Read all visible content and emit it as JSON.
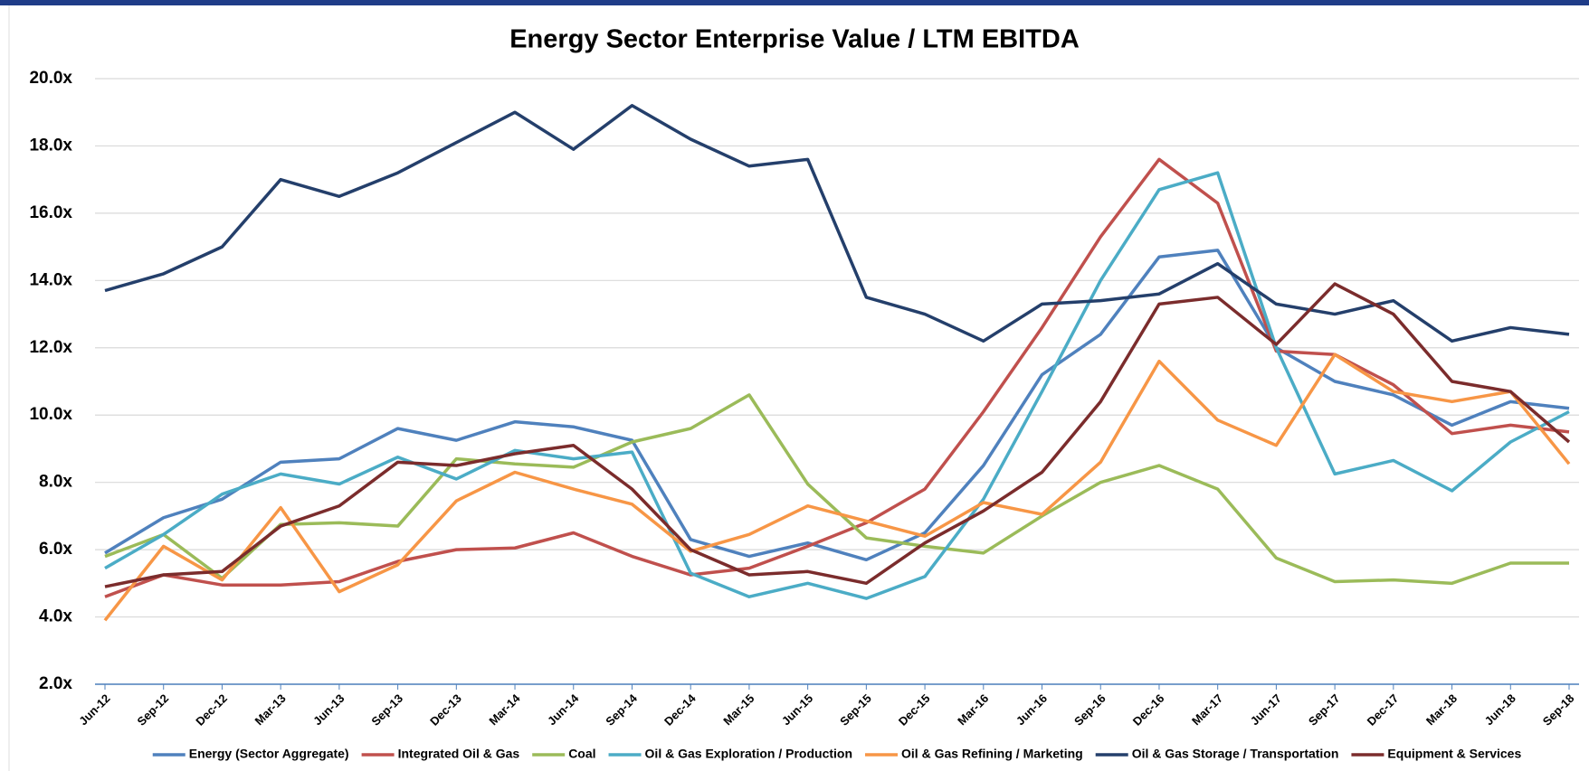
{
  "chart_data": {
    "type": "line",
    "title": "Energy Sector Enterprise Value  / LTM EBITDA",
    "categories": [
      "Jun-12",
      "Sep-12",
      "Dec-12",
      "Mar-13",
      "Jun-13",
      "Sep-13",
      "Dec-13",
      "Mar-14",
      "Jun-14",
      "Sep-14",
      "Dec-14",
      "Mar-15",
      "Jun-15",
      "Sep-15",
      "Dec-15",
      "Mar-16",
      "Jun-16",
      "Sep-16",
      "Dec-16",
      "Mar-17",
      "Jun-17",
      "Sep-17",
      "Dec-17",
      "Mar-18",
      "Jun-18",
      "Sep-18"
    ],
    "ylim": [
      2,
      20
    ],
    "yticks": [
      {
        "value": 2,
        "label": "2.0x"
      },
      {
        "value": 4,
        "label": "4.0x"
      },
      {
        "value": 6,
        "label": "6.0x"
      },
      {
        "value": 8,
        "label": "8.0x"
      },
      {
        "value": 10,
        "label": "10.0x"
      },
      {
        "value": 12,
        "label": "12.0x"
      },
      {
        "value": 14,
        "label": "14.0x"
      },
      {
        "value": 16,
        "label": "16.0x"
      },
      {
        "value": 18,
        "label": "18.0x"
      },
      {
        "value": 20,
        "label": "20.0x"
      }
    ],
    "grid": true,
    "legend": "bottom",
    "series": [
      {
        "name": "Energy (Sector Aggregate)",
        "color": "#4f81bd",
        "values": [
          5.9,
          6.95,
          7.5,
          8.6,
          8.7,
          9.6,
          9.25,
          9.8,
          9.65,
          9.25,
          6.3,
          5.8,
          6.2,
          5.7,
          6.5,
          8.5,
          11.2,
          12.4,
          14.7,
          14.9,
          12.0,
          11.0,
          10.6,
          9.7,
          10.4,
          10.2
        ]
      },
      {
        "name": "Integrated Oil & Gas",
        "color": "#c0504d",
        "values": [
          4.6,
          5.25,
          4.95,
          4.95,
          5.05,
          5.65,
          6.0,
          6.05,
          6.5,
          5.8,
          5.25,
          5.45,
          6.1,
          6.8,
          7.8,
          10.1,
          12.6,
          15.3,
          17.6,
          16.3,
          11.9,
          11.8,
          10.9,
          9.45,
          9.7,
          9.5
        ]
      },
      {
        "name": "Coal",
        "color": "#9bbb59",
        "values": [
          5.8,
          6.45,
          5.15,
          6.75,
          6.8,
          6.7,
          8.7,
          8.55,
          8.45,
          9.2,
          9.6,
          10.6,
          7.95,
          6.35,
          6.1,
          5.9,
          7.0,
          8.0,
          8.5,
          7.8,
          5.75,
          5.05,
          5.1,
          5.0,
          5.6,
          5.6
        ]
      },
      {
        "name": "Oil & Gas Exploration / Production",
        "color": "#4bacc6",
        "values": [
          5.45,
          6.45,
          7.65,
          8.25,
          7.95,
          8.75,
          8.1,
          8.95,
          8.7,
          8.9,
          5.3,
          4.6,
          5.0,
          4.55,
          5.2,
          7.5,
          10.7,
          14.0,
          16.7,
          17.2,
          12.0,
          8.25,
          8.65,
          7.75,
          9.2,
          10.1
        ]
      },
      {
        "name": "Oil & Gas Refining / Marketing",
        "color": "#f79646",
        "values": [
          3.9,
          6.1,
          5.1,
          7.25,
          4.75,
          5.55,
          7.45,
          8.3,
          7.8,
          7.35,
          5.95,
          6.45,
          7.3,
          6.85,
          6.4,
          7.4,
          7.05,
          8.6,
          11.6,
          9.85,
          9.1,
          11.8,
          10.7,
          10.4,
          10.7,
          8.55
        ]
      },
      {
        "name": "Oil & Gas Storage / Transportation",
        "color": "#243f6b",
        "values": [
          13.7,
          14.2,
          15.0,
          17.0,
          16.5,
          17.2,
          18.1,
          19.0,
          17.9,
          19.2,
          18.2,
          17.4,
          17.6,
          13.5,
          13.0,
          12.2,
          13.3,
          13.4,
          13.6,
          14.5,
          13.3,
          13.0,
          13.4,
          12.2,
          12.6,
          12.4
        ]
      },
      {
        "name": "Equipment & Services",
        "color": "#7b2c2c",
        "values": [
          4.9,
          5.25,
          5.35,
          6.7,
          7.3,
          8.6,
          8.5,
          8.85,
          9.1,
          7.8,
          6.0,
          5.25,
          5.35,
          5.0,
          6.2,
          7.15,
          8.3,
          10.4,
          13.3,
          13.5,
          12.1,
          13.9,
          13.0,
          11.0,
          10.7,
          9.2
        ]
      }
    ]
  }
}
